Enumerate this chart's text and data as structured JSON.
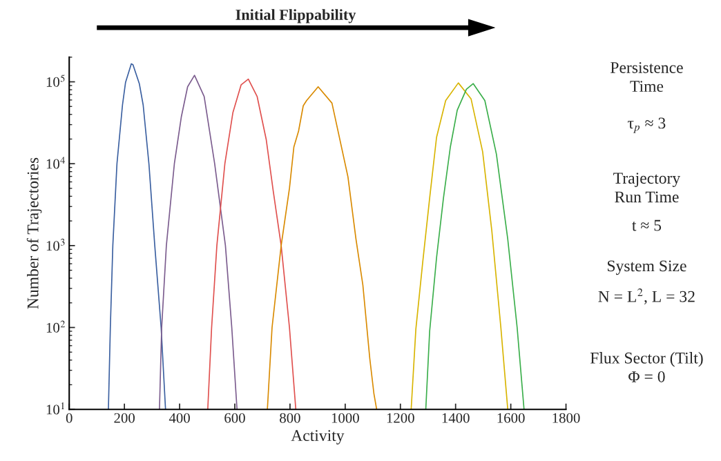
{
  "chart_data": {
    "type": "line",
    "title": "Initial Flippability",
    "xlabel": "Activity",
    "ylabel": "Number of Trajectories",
    "log": "y",
    "xlim": [
      0,
      1800
    ],
    "xticks": [
      0,
      200,
      400,
      600,
      800,
      1000,
      1200,
      1400,
      1600,
      1800
    ],
    "ylim": [
      10,
      200000
    ],
    "yticks": [
      {
        "value": 10,
        "label": "10$^{1}$"
      },
      {
        "value": 100,
        "label": "10$^{2}$"
      },
      {
        "value": 1000,
        "label": "10$^{3}$"
      },
      {
        "value": 10000,
        "label": "10$^{4}$"
      },
      {
        "value": 100000,
        "label": "10$^{5}$"
      }
    ],
    "grid": false,
    "legend": false,
    "marker": "none",
    "line_style": "solid",
    "annotations": [
      "Persistence\nTime",
      "τ$_{p}$ ≈ 3",
      "Trajectory\nRun Time",
      "t ≈ 5",
      "System Size",
      "N = L$^{2}$, L = 32",
      "Flux Sector (Tilt)\nΦ = 0"
    ],
    "series": [
      {
        "color": "#3a5fa0",
        "x": [
          142,
          149,
          158,
          173,
          193,
          204,
          225,
          231,
          254,
          268,
          289,
          310,
          333,
          349
        ],
        "values": [
          10,
          100,
          1000,
          10000,
          52000,
          98000,
          166000,
          162000,
          95000,
          52000,
          9800,
          1000,
          100,
          10
        ]
      },
      {
        "color": "#7b5c8e",
        "x": [
          327,
          335,
          352,
          381,
          406,
          429,
          454,
          489,
          527,
          566,
          589,
          608
        ],
        "values": [
          10,
          100,
          1000,
          10000,
          37000,
          87000,
          120000,
          66000,
          10000,
          1000,
          100,
          10
        ]
      },
      {
        "color": "#e0504e",
        "x": [
          502,
          516,
          535,
          564,
          593,
          623,
          649,
          681,
          714,
          739,
          768,
          798,
          821
        ],
        "values": [
          10,
          100,
          1000,
          10000,
          42000,
          92000,
          108000,
          66000,
          19600,
          4700,
          1000,
          100,
          10
        ]
      },
      {
        "color": "#d98a00",
        "x": [
          718,
          735,
          768,
          798,
          814,
          831,
          848,
          860,
          902,
          952,
          1010,
          1039,
          1064,
          1089,
          1104,
          1114
        ],
        "values": [
          10,
          100,
          1000,
          5000,
          16000,
          25000,
          51000,
          59000,
          87000,
          55000,
          6900,
          1200,
          330,
          42,
          15.6,
          10
        ]
      },
      {
        "color": "#d8b400",
        "x": [
          1239,
          1256,
          1281,
          1306,
          1331,
          1364,
          1410,
          1456,
          1498,
          1531,
          1564,
          1589
        ],
        "values": [
          10,
          95,
          630,
          3800,
          21000,
          59000,
          97000,
          62000,
          14000,
          1550,
          100,
          10
        ]
      },
      {
        "color": "#3aae4a",
        "x": [
          1292,
          1306,
          1331,
          1356,
          1381,
          1406,
          1439,
          1464,
          1506,
          1548,
          1589,
          1623,
          1648
        ],
        "values": [
          10,
          90,
          710,
          3800,
          16000,
          45000,
          81000,
          95000,
          59000,
          13000,
          1200,
          100,
          10
        ]
      }
    ]
  }
}
